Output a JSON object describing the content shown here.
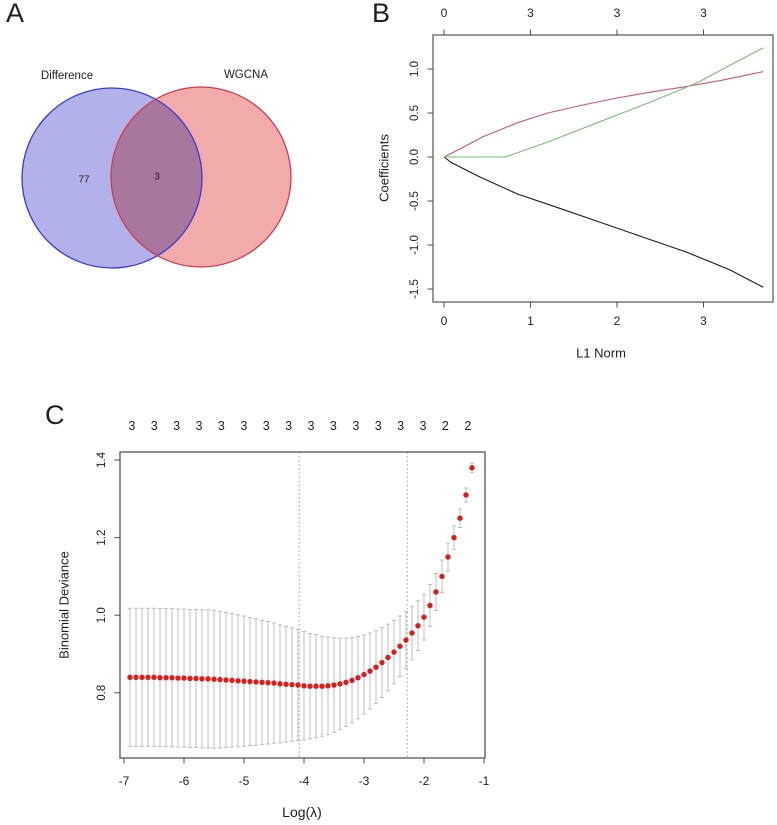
{
  "chart_data": [
    {
      "type": "venn",
      "panel_label": "A",
      "left_label": "Difference",
      "right_label": "WGCNA",
      "left_only": 77,
      "intersection": 3,
      "colors": {
        "left_fill": "#b2b1ea",
        "right_fill": "#f2abab",
        "left_stroke": "#3b3bd1",
        "right_stroke": "#d23b4e"
      }
    },
    {
      "type": "line",
      "panel_label": "B",
      "xlabel": "L1 Norm",
      "ylabel": "Coefficients",
      "top_axis_labels": [
        {
          "x": 0,
          "label": "0"
        },
        {
          "x": 1,
          "label": "3"
        },
        {
          "x": 2,
          "label": "3"
        },
        {
          "x": 3,
          "label": "3"
        }
      ],
      "x_ticks": [
        0,
        1,
        2,
        3
      ],
      "y_ticks": [
        -1.5,
        -1.0,
        -0.5,
        0.0,
        0.5,
        1.0
      ],
      "xlim": [
        -0.13,
        3.81
      ],
      "ylim": [
        -1.65,
        1.39
      ],
      "grid": false,
      "series": [
        {
          "name": "variable-1-black",
          "color": "#1c1c1c",
          "points": [
            [
              0,
              0
            ],
            [
              0.08,
              -0.06
            ],
            [
              0.2,
              -0.12
            ],
            [
              0.4,
              -0.22
            ],
            [
              0.6,
              -0.31
            ],
            [
              0.85,
              -0.42
            ],
            [
              1.3,
              -0.57
            ],
            [
              1.8,
              -0.74
            ],
            [
              2.3,
              -0.91
            ],
            [
              2.8,
              -1.08
            ],
            [
              3.3,
              -1.28
            ],
            [
              3.69,
              -1.48
            ]
          ]
        },
        {
          "name": "variable-2-red",
          "color": "#c85a70",
          "points": [
            [
              0,
              0
            ],
            [
              0.2,
              0.1
            ],
            [
              0.45,
              0.23
            ],
            [
              0.7,
              0.33
            ],
            [
              0.85,
              0.39
            ],
            [
              1.2,
              0.5
            ],
            [
              1.6,
              0.59
            ],
            [
              2.0,
              0.67
            ],
            [
              2.4,
              0.74
            ],
            [
              2.8,
              0.8
            ],
            [
              3.2,
              0.87
            ],
            [
              3.69,
              0.97
            ]
          ]
        },
        {
          "name": "variable-3-green",
          "color": "#74c274",
          "points": [
            [
              0,
              0
            ],
            [
              0.71,
              0
            ],
            [
              1.2,
              0.17
            ],
            [
              1.8,
              0.4
            ],
            [
              2.4,
              0.63
            ],
            [
              2.94,
              0.85
            ],
            [
              3.3,
              1.04
            ],
            [
              3.69,
              1.24
            ]
          ]
        }
      ]
    },
    {
      "type": "scatter",
      "panel_label": "C",
      "xlabel": "Log(λ)",
      "ylabel": "Binomial Deviance",
      "top_axis_labels": [
        "3",
        "3",
        "3",
        "3",
        "3",
        "3",
        "3",
        "3",
        "3",
        "3",
        "3",
        "3",
        "3",
        "3",
        "2",
        "2"
      ],
      "top_axis_range": [
        -6.87,
        -1.27
      ],
      "x_ticks": [
        -7,
        -6,
        -5,
        -4,
        -3,
        -2,
        -1
      ],
      "y_ticks": [
        0.8,
        1.0,
        1.2,
        1.4
      ],
      "xlim": [
        -7.07,
        -0.98
      ],
      "ylim": [
        0.632,
        1.42
      ],
      "grid": false,
      "vlines": [
        -4.08,
        -2.28
      ],
      "point_color": "#dd1c1c",
      "errorbar_color": "#b9b9b9",
      "points": {
        "x": [
          -6.9,
          -6.8,
          -6.7,
          -6.6,
          -6.5,
          -6.4,
          -6.3,
          -6.2,
          -6.1,
          -6.0,
          -5.9,
          -5.8,
          -5.7,
          -5.6,
          -5.5,
          -5.4,
          -5.3,
          -5.2,
          -5.1,
          -5.0,
          -4.9,
          -4.8,
          -4.7,
          -4.6,
          -4.5,
          -4.4,
          -4.3,
          -4.2,
          -4.1,
          -4.0,
          -3.9,
          -3.8,
          -3.7,
          -3.6,
          -3.5,
          -3.4,
          -3.3,
          -3.2,
          -3.1,
          -3.0,
          -2.9,
          -2.8,
          -2.7,
          -2.6,
          -2.5,
          -2.4,
          -2.3,
          -2.2,
          -2.1,
          -2.0,
          -1.9,
          -1.8,
          -1.7,
          -1.6,
          -1.5,
          -1.4,
          -1.3,
          -1.2
        ],
        "y": [
          0.84,
          0.84,
          0.84,
          0.84,
          0.84,
          0.839,
          0.839,
          0.839,
          0.838,
          0.838,
          0.837,
          0.837,
          0.836,
          0.836,
          0.835,
          0.834,
          0.833,
          0.832,
          0.831,
          0.83,
          0.829,
          0.828,
          0.827,
          0.826,
          0.825,
          0.823,
          0.822,
          0.821,
          0.82,
          0.818,
          0.817,
          0.817,
          0.817,
          0.818,
          0.82,
          0.823,
          0.827,
          0.832,
          0.839,
          0.847,
          0.856,
          0.866,
          0.878,
          0.891,
          0.905,
          0.92,
          0.936,
          0.954,
          0.973,
          0.995,
          1.025,
          1.06,
          1.1,
          1.15,
          1.2,
          1.25,
          1.31,
          1.38
        ],
        "se": [
          0.178,
          0.178,
          0.178,
          0.178,
          0.178,
          0.178,
          0.178,
          0.178,
          0.178,
          0.178,
          0.178,
          0.178,
          0.178,
          0.178,
          0.178,
          0.176,
          0.174,
          0.172,
          0.17,
          0.168,
          0.165,
          0.163,
          0.16,
          0.158,
          0.155,
          0.152,
          0.149,
          0.146,
          0.143,
          0.14,
          0.136,
          0.133,
          0.129,
          0.126,
          0.122,
          0.118,
          0.114,
          0.11,
          0.106,
          0.102,
          0.098,
          0.094,
          0.09,
          0.086,
          0.082,
          0.078,
          0.074,
          0.069,
          0.064,
          0.059,
          0.054,
          0.048,
          0.042,
          0.036,
          0.03,
          0.024,
          0.018,
          0.012
        ]
      }
    }
  ]
}
